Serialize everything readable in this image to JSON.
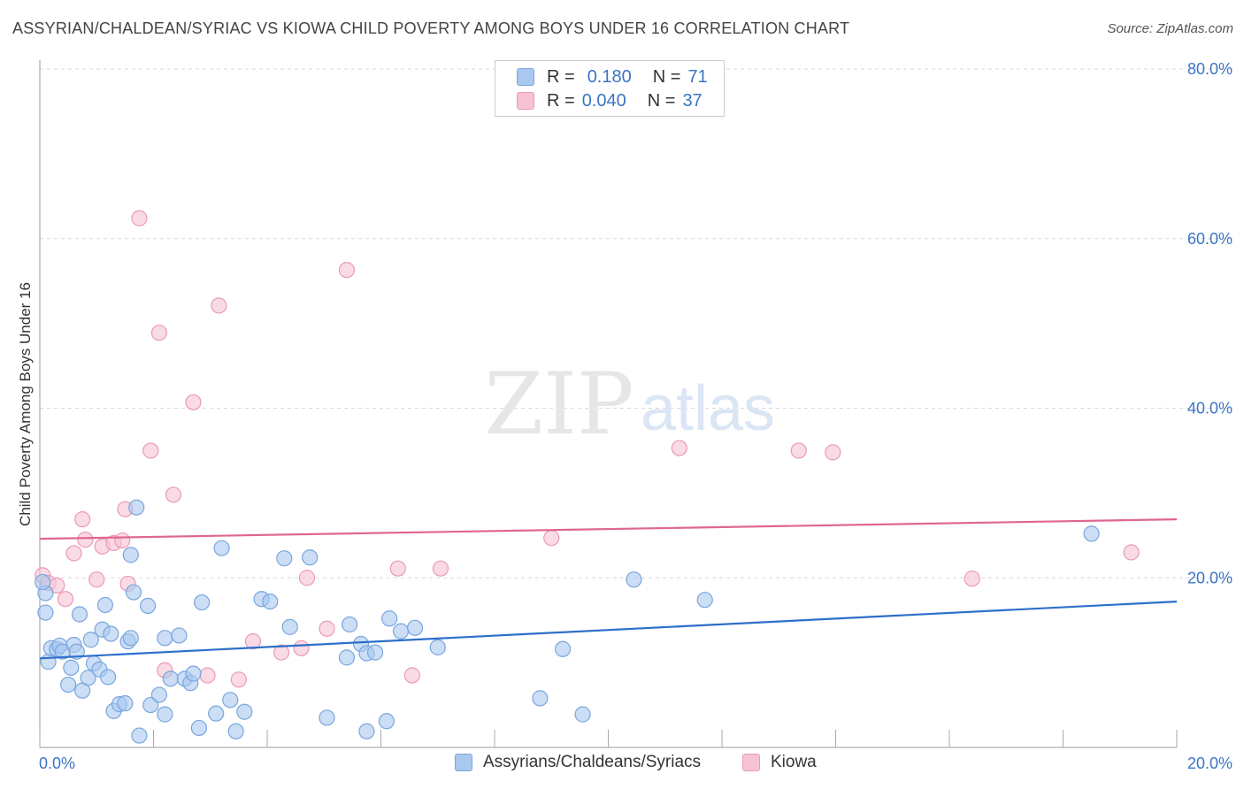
{
  "header": {
    "title": "ASSYRIAN/CHALDEAN/SYRIAC VS KIOWA CHILD POVERTY AMONG BOYS UNDER 16 CORRELATION CHART",
    "source": "Source: ZipAtlas.com"
  },
  "watermark": {
    "zip": "ZIP",
    "atlas": "atlas"
  },
  "legend": {
    "rows": [
      {
        "r_label": "R =",
        "r_value": "0.180",
        "n_label": "N =",
        "n_value": "71"
      },
      {
        "r_label": "R =",
        "r_value": "0.040",
        "n_label": "N =",
        "n_value": "37"
      }
    ]
  },
  "bottom_legend": {
    "items": [
      {
        "label": "Assyrians/Chaldeans/Syriacs"
      },
      {
        "label": "Kiowa"
      }
    ]
  },
  "colors": {
    "blue_fill": "#a9c8f0",
    "blue_stroke": "#7aa6dd",
    "blue_line": "#2d6fcc",
    "pink_fill": "#f7c3d3",
    "pink_stroke": "#ea9ab4",
    "pink_line": "#e0668f",
    "axis_text": "#3a74c4",
    "grid": "#d8d8d8"
  },
  "chart_data": {
    "type": "scatter",
    "title": "ASSYRIAN/CHALDEAN/SYRIAC VS KIOWA CHILD POVERTY AMONG BOYS UNDER 16 CORRELATION CHART",
    "xlabel": "",
    "ylabel": "Child Poverty Among Boys Under 16",
    "xlim": [
      0,
      20
    ],
    "ylim": [
      0,
      80
    ],
    "x_tick_labels": [
      "0.0%",
      "20.0%"
    ],
    "x_tick_values": [
      0,
      20
    ],
    "y_tick_labels": [
      "20.0%",
      "40.0%",
      "60.0%",
      "80.0%"
    ],
    "y_tick_values": [
      20,
      40,
      60,
      80
    ],
    "grid": true,
    "legend_position": "top-center",
    "series": [
      {
        "name": "Assyrians/Chaldeans/Syriacs",
        "color": "blue",
        "R": 0.18,
        "N": 71,
        "trend": {
          "x": [
            0,
            20
          ],
          "y": [
            10.5,
            17.2
          ]
        },
        "points": [
          [
            0.1,
            18.2
          ],
          [
            0.1,
            15.9
          ],
          [
            0.15,
            10.1
          ],
          [
            0.2,
            11.7
          ],
          [
            0.3,
            11.6
          ],
          [
            0.35,
            12.0
          ],
          [
            0.4,
            11.3
          ],
          [
            0.5,
            7.4
          ],
          [
            0.55,
            9.4
          ],
          [
            0.6,
            12.1
          ],
          [
            0.65,
            11.3
          ],
          [
            0.7,
            15.7
          ],
          [
            0.75,
            6.7
          ],
          [
            0.85,
            8.2
          ],
          [
            0.9,
            12.7
          ],
          [
            0.95,
            9.9
          ],
          [
            1.05,
            9.2
          ],
          [
            1.1,
            13.9
          ],
          [
            1.15,
            16.8
          ],
          [
            1.2,
            8.3
          ],
          [
            1.25,
            13.4
          ],
          [
            1.3,
            4.3
          ],
          [
            1.4,
            5.1
          ],
          [
            1.5,
            5.2
          ],
          [
            1.55,
            12.5
          ],
          [
            1.6,
            12.9
          ],
          [
            1.65,
            18.3
          ],
          [
            1.7,
            28.3
          ],
          [
            1.75,
            1.4
          ],
          [
            1.6,
            22.7
          ],
          [
            1.9,
            16.7
          ],
          [
            1.95,
            5.0
          ],
          [
            2.1,
            6.2
          ],
          [
            2.2,
            3.9
          ],
          [
            2.2,
            12.9
          ],
          [
            2.3,
            8.1
          ],
          [
            2.45,
            13.2
          ],
          [
            2.55,
            8.1
          ],
          [
            2.65,
            7.6
          ],
          [
            2.7,
            8.7
          ],
          [
            2.8,
            2.3
          ],
          [
            2.85,
            17.1
          ],
          [
            3.1,
            4.0
          ],
          [
            3.2,
            23.5
          ],
          [
            3.35,
            5.6
          ],
          [
            3.45,
            1.9
          ],
          [
            3.6,
            4.2
          ],
          [
            3.9,
            17.5
          ],
          [
            4.05,
            17.2
          ],
          [
            4.3,
            22.3
          ],
          [
            4.4,
            14.2
          ],
          [
            4.75,
            22.4
          ],
          [
            5.05,
            3.5
          ],
          [
            5.4,
            10.6
          ],
          [
            5.45,
            14.5
          ],
          [
            5.65,
            12.2
          ],
          [
            5.75,
            11.1
          ],
          [
            5.9,
            11.2
          ],
          [
            5.75,
            1.9
          ],
          [
            6.1,
            3.1
          ],
          [
            6.15,
            15.2
          ],
          [
            6.35,
            13.7
          ],
          [
            6.6,
            14.1
          ],
          [
            7.0,
            11.8
          ],
          [
            8.8,
            5.8
          ],
          [
            9.2,
            11.6
          ],
          [
            9.55,
            3.9
          ],
          [
            10.45,
            19.8
          ],
          [
            11.7,
            17.4
          ],
          [
            18.5,
            25.2
          ],
          [
            0.05,
            19.5
          ]
        ]
      },
      {
        "name": "Kiowa",
        "color": "pink",
        "R": 0.04,
        "N": 37,
        "trend": {
          "x": [
            0,
            20
          ],
          "y": [
            24.6,
            26.9
          ]
        },
        "points": [
          [
            0.05,
            20.3
          ],
          [
            0.15,
            19.4
          ],
          [
            0.3,
            19.1
          ],
          [
            0.45,
            17.5
          ],
          [
            0.6,
            22.9
          ],
          [
            0.75,
            26.9
          ],
          [
            0.8,
            24.5
          ],
          [
            1.0,
            19.8
          ],
          [
            1.1,
            23.7
          ],
          [
            1.3,
            24.1
          ],
          [
            1.45,
            24.4
          ],
          [
            1.5,
            28.1
          ],
          [
            1.55,
            19.3
          ],
          [
            1.75,
            62.4
          ],
          [
            1.95,
            35.0
          ],
          [
            2.1,
            48.9
          ],
          [
            2.2,
            9.1
          ],
          [
            2.35,
            29.8
          ],
          [
            2.7,
            40.7
          ],
          [
            2.95,
            8.5
          ],
          [
            3.15,
            52.1
          ],
          [
            3.5,
            8.0
          ],
          [
            3.75,
            12.5
          ],
          [
            4.25,
            11.2
          ],
          [
            4.6,
            11.7
          ],
          [
            4.7,
            20.0
          ],
          [
            5.05,
            14.0
          ],
          [
            5.4,
            56.3
          ],
          [
            6.3,
            21.1
          ],
          [
            6.55,
            8.5
          ],
          [
            7.05,
            21.1
          ],
          [
            9.0,
            24.7
          ],
          [
            11.25,
            35.3
          ],
          [
            13.35,
            35.0
          ],
          [
            13.95,
            34.8
          ],
          [
            16.4,
            19.9
          ],
          [
            19.2,
            23.0
          ]
        ]
      }
    ]
  }
}
